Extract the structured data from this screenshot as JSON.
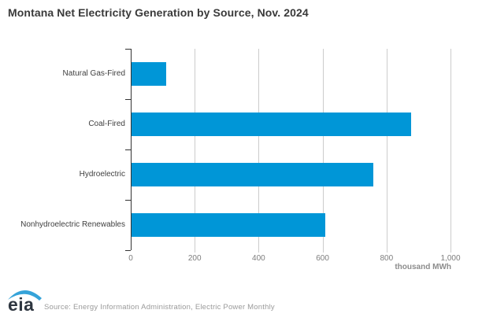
{
  "title": "Montana Net Electricity Generation by Source, Nov. 2024",
  "chart_data": {
    "type": "bar",
    "orientation": "horizontal",
    "categories": [
      "Natural Gas-Fired",
      "Coal-Fired",
      "Hydroelectric",
      "Nonhydroelectric Renewables"
    ],
    "values": [
      108,
      875,
      755,
      605
    ],
    "title": "Montana Net Electricity Generation by Source, Nov. 2024",
    "xlabel": "thousand MWh",
    "ylabel": "",
    "xlim": [
      0,
      1000
    ],
    "xticks": [
      0,
      200,
      400,
      600,
      800,
      1000
    ],
    "xtick_labels": [
      "0",
      "200",
      "400",
      "600",
      "800",
      "1,000"
    ],
    "grid": "vertical-gridlines-on",
    "legend": "none",
    "colors": {
      "bar": "#0096D7",
      "gridline": "#cccccc",
      "axis": "#333333",
      "tick_label": "#7d7d7d",
      "category_label": "#404040",
      "title_text": "#3a3a3a"
    }
  },
  "footer": {
    "logo_text": "eia",
    "logo_swoosh_color": "#35a3d9",
    "source": "Source: Energy Information Administration, Electric Power Monthly"
  }
}
